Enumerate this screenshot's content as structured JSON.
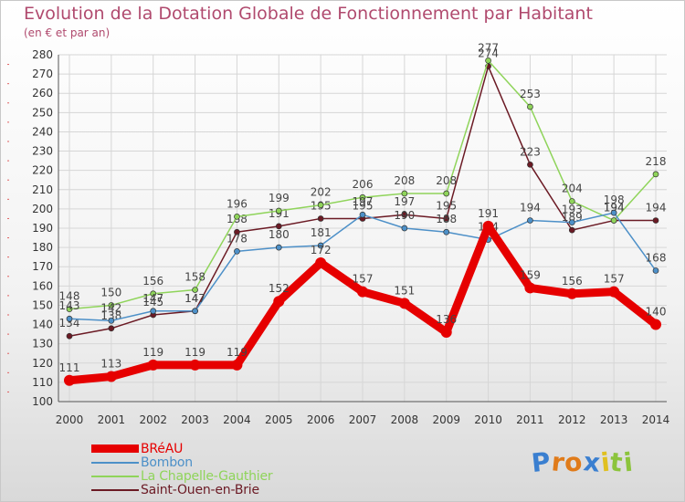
{
  "chart_data": {
    "type": "line",
    "title": "Evolution de la Dotation Globale de Fonctionnement par Habitant",
    "subtitle": "(en € et par an)",
    "xlabel": "",
    "ylabel": "",
    "ylim": [
      100,
      280
    ],
    "ytick_step": 10,
    "grid": true,
    "legend_position": "bottom-left",
    "x": [
      2000,
      2001,
      2002,
      2003,
      2004,
      2005,
      2006,
      2007,
      2008,
      2009,
      2010,
      2011,
      2012,
      2013,
      2014
    ],
    "series": [
      {
        "name": "Saint-Ouen-en-Brie",
        "color": "#6b1a24",
        "values": [
          134,
          138,
          145,
          147,
          188,
          191,
          195,
          195,
          197,
          195,
          274,
          223,
          189,
          194,
          194
        ]
      },
      {
        "name": "La Chapelle-Gauthier",
        "color": "#8fd45a",
        "values": [
          148,
          150,
          156,
          158,
          196,
          199,
          202,
          206,
          208,
          208,
          277,
          253,
          204,
          194,
          218
        ]
      },
      {
        "name": "Bombon",
        "color": "#4d90c8",
        "values": [
          143,
          142,
          147,
          147,
          178,
          180,
          181,
          197,
          190,
          188,
          184,
          194,
          193,
          198,
          168
        ]
      },
      {
        "name": "BRéAU",
        "color": "#e60000",
        "values": [
          111,
          113,
          119,
          119,
          119,
          152,
          172,
          157,
          151,
          136,
          191,
          159,
          156,
          157,
          140
        ]
      }
    ],
    "legend_order": [
      "BRéAU",
      "Bombon",
      "La Chapelle-Gauthier",
      "Saint-Ouen-en-Brie"
    ]
  },
  "logo": {
    "letters": [
      "P",
      "r",
      "o",
      "x",
      "i",
      "t",
      "i"
    ],
    "colors": [
      "#3a7fd0",
      "#e07b1a",
      "#e07b1a",
      "#3a7fd0",
      "#e0c020",
      "#8cc43c",
      "#8cc43c"
    ]
  }
}
